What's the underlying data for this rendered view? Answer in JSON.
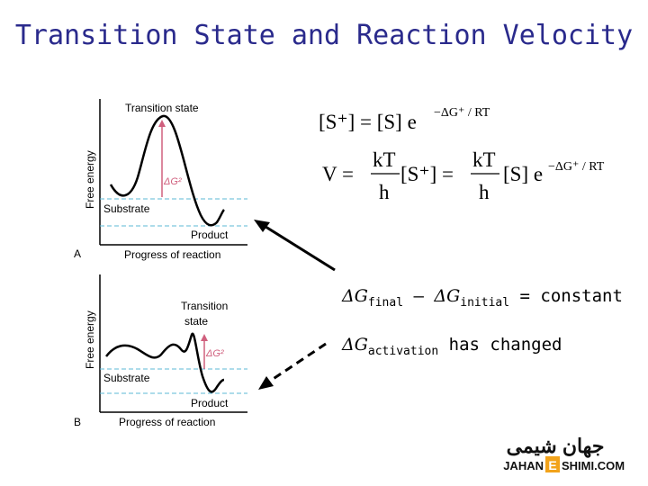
{
  "title": "Transition State and Reaction Velocity",
  "panel_a": {
    "letter": "A",
    "y_label": "Free energy",
    "x_label": "Progress of reaction",
    "transition_label": "Transition state",
    "delta_label": "ΔG²",
    "substrate_label": "Substrate",
    "product_label": "Product"
  },
  "panel_b": {
    "letter": "B",
    "y_label": "Free energy",
    "x_label": "Progress of reaction",
    "transition_label_1": "Transition",
    "transition_label_2": "state",
    "delta_label": "ΔG²",
    "substrate_label": "Substrate",
    "product_label": "Product"
  },
  "equation1": {
    "lhs": "[S⁺] = [S] e",
    "exp": "−ΔG⁺ / RT"
  },
  "equation2": {
    "v": "V =",
    "num": "kT",
    "den": "h",
    "mid": "[S⁺] =",
    "tail": "[S] e",
    "exp": "−ΔG⁺ / RT"
  },
  "notes": {
    "line1_delta": "ΔG",
    "line1_sub1": "final",
    "line1_minus": " – ",
    "line1_delta2": "ΔG",
    "line1_sub2": "initial",
    "line1_rest": " = constant",
    "line2_delta": "ΔG",
    "line2_sub": "activation",
    "line2_rest": " has changed"
  },
  "logo": {
    "arabic": "جهان شیمی",
    "latin_1": "JAHAN",
    "latin_e": "E",
    "latin_2": "SHIMI.COM"
  },
  "colors": {
    "title": "#2a2a8c",
    "dashed": "#5bb8d6",
    "arrow": "#d0607e",
    "logo_orange": "#f2a31b"
  }
}
